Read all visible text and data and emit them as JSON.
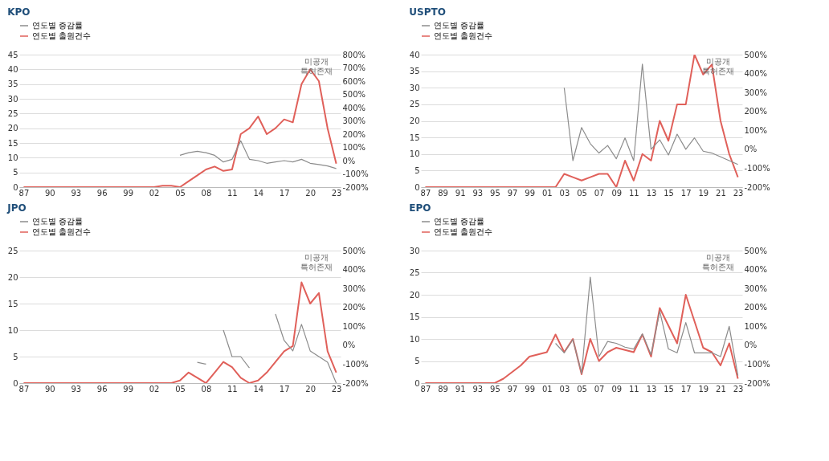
{
  "chart_data": [
    {
      "type": "line",
      "title": "KPO",
      "legend": "top",
      "grid": "y",
      "annotations": [
        "미공개 특허존재"
      ],
      "x": [
        1987,
        1988,
        1989,
        1990,
        1991,
        1992,
        1993,
        1994,
        1995,
        1996,
        1997,
        1998,
        1999,
        2000,
        2001,
        2002,
        2003,
        2004,
        2005,
        2006,
        2007,
        2008,
        2009,
        2010,
        2011,
        2012,
        2013,
        2014,
        2015,
        2016,
        2017,
        2018,
        2019,
        2020,
        2021,
        2022,
        2023
      ],
      "xlim": [
        1986.5,
        2023.5
      ],
      "xticks": [
        {
          "value": 1987,
          "label": "87"
        },
        {
          "value": 1990,
          "label": "90"
        },
        {
          "value": 1993,
          "label": "93"
        },
        {
          "value": 1996,
          "label": "96"
        },
        {
          "value": 1999,
          "label": "99"
        },
        {
          "value": 2002,
          "label": "02"
        },
        {
          "value": 2005,
          "label": "05"
        },
        {
          "value": 2008,
          "label": "08"
        },
        {
          "value": 2011,
          "label": "11"
        },
        {
          "value": 2014,
          "label": "14"
        },
        {
          "value": 2017,
          "label": "17"
        },
        {
          "value": 2020,
          "label": "20"
        },
        {
          "value": 2023,
          "label": "23"
        }
      ],
      "ylim": [
        0,
        45
      ],
      "yticks": [
        0,
        5,
        10,
        15,
        20,
        25,
        30,
        35,
        40,
        45
      ],
      "y2lim": [
        -200,
        800
      ],
      "y2ticks": [
        {
          "value": -200,
          "label": "-200%"
        },
        {
          "value": -100,
          "label": "-100%"
        },
        {
          "value": 0,
          "label": "0%"
        },
        {
          "value": 100,
          "label": "100%"
        },
        {
          "value": 200,
          "label": "200%"
        },
        {
          "value": 300,
          "label": "300%"
        },
        {
          "value": 400,
          "label": "400%"
        },
        {
          "value": 500,
          "label": "500%"
        },
        {
          "value": 600,
          "label": "600%"
        },
        {
          "value": 700,
          "label": "700%"
        },
        {
          "value": 800,
          "label": "800%"
        }
      ],
      "series": [
        {
          "name": "연도별 증감률",
          "color": "#8c8c8c",
          "axis": "y2",
          "values": [
            null,
            null,
            null,
            null,
            null,
            null,
            null,
            null,
            null,
            null,
            null,
            null,
            null,
            null,
            null,
            null,
            null,
            null,
            40,
            60,
            70,
            60,
            40,
            -10,
            10,
            150,
            10,
            0,
            -20,
            -10,
            0,
            -10,
            10,
            -20,
            -30,
            -40,
            -60
          ]
        },
        {
          "name": "연도별 출원건수",
          "color": "#e0605a",
          "values": [
            0,
            0,
            0,
            0,
            0,
            0,
            0,
            0,
            0,
            0,
            0,
            0,
            0,
            0,
            0,
            0,
            0.5,
            0.5,
            0,
            2,
            4,
            6,
            7,
            5.5,
            6,
            18,
            20,
            24,
            18,
            20,
            23,
            22,
            35,
            40,
            36,
            20,
            8
          ]
        }
      ]
    },
    {
      "type": "line",
      "title": "USPTO",
      "legend": "top",
      "grid": "y",
      "annotations": [
        "미공개 특허존재"
      ],
      "x": [
        1987,
        1988,
        1989,
        1990,
        1991,
        1992,
        1993,
        1994,
        1995,
        1996,
        1997,
        1998,
        1999,
        2000,
        2001,
        2002,
        2003,
        2004,
        2005,
        2006,
        2007,
        2008,
        2009,
        2010,
        2011,
        2012,
        2013,
        2014,
        2015,
        2016,
        2017,
        2018,
        2019,
        2020,
        2021,
        2022,
        2023
      ],
      "xlim": [
        1986.5,
        2023.5
      ],
      "xticks": [
        {
          "value": 1987,
          "label": "87"
        },
        {
          "value": 1989,
          "label": "89"
        },
        {
          "value": 1991,
          "label": "91"
        },
        {
          "value": 1993,
          "label": "93"
        },
        {
          "value": 1995,
          "label": "95"
        },
        {
          "value": 1997,
          "label": "97"
        },
        {
          "value": 1999,
          "label": "99"
        },
        {
          "value": 2001,
          "label": "01"
        },
        {
          "value": 2003,
          "label": "03"
        },
        {
          "value": 2005,
          "label": "05"
        },
        {
          "value": 2007,
          "label": "07"
        },
        {
          "value": 2009,
          "label": "09"
        },
        {
          "value": 2011,
          "label": "11"
        },
        {
          "value": 2013,
          "label": "13"
        },
        {
          "value": 2015,
          "label": "15"
        },
        {
          "value": 2017,
          "label": "17"
        },
        {
          "value": 2019,
          "label": "19"
        },
        {
          "value": 2021,
          "label": "21"
        },
        {
          "value": 2023,
          "label": "23"
        }
      ],
      "ylim": [
        0,
        40
      ],
      "yticks": [
        0,
        5,
        10,
        15,
        20,
        25,
        30,
        35,
        40
      ],
      "y2lim": [
        -200,
        500
      ],
      "y2ticks": [
        {
          "value": -200,
          "label": "-200%"
        },
        {
          "value": -100,
          "label": "-100%"
        },
        {
          "value": 0,
          "label": "0%"
        },
        {
          "value": 100,
          "label": "100%"
        },
        {
          "value": 200,
          "label": "200%"
        },
        {
          "value": 300,
          "label": "300%"
        },
        {
          "value": 400,
          "label": "400%"
        },
        {
          "value": 500,
          "label": "500%"
        }
      ],
      "series": [
        {
          "name": "연도별 증감률",
          "color": "#8c8c8c",
          "axis": "y2",
          "values": [
            null,
            null,
            null,
            null,
            null,
            null,
            null,
            null,
            null,
            null,
            null,
            null,
            null,
            null,
            null,
            null,
            325,
            -60,
            115,
            30,
            -20,
            20,
            -50,
            60,
            -60,
            450,
            0,
            50,
            -30,
            80,
            0,
            60,
            -10,
            -20,
            -40,
            -60,
            -80
          ]
        },
        {
          "name": "연도별 출원건수",
          "color": "#e0605a",
          "values": [
            0,
            0,
            0,
            0,
            0,
            0,
            0,
            0,
            0,
            0,
            0,
            0,
            0,
            0,
            0,
            0,
            4,
            3,
            2,
            3,
            4,
            4,
            0,
            8,
            2,
            10,
            8,
            20,
            14,
            25,
            25,
            40,
            34,
            37,
            20,
            10,
            3
          ]
        }
      ]
    },
    {
      "type": "line",
      "title": "JPO",
      "legend": "top",
      "grid": "y",
      "annotations": [
        "미공개 특허존재"
      ],
      "x": [
        1987,
        1988,
        1989,
        1990,
        1991,
        1992,
        1993,
        1994,
        1995,
        1996,
        1997,
        1998,
        1999,
        2000,
        2001,
        2002,
        2003,
        2004,
        2005,
        2006,
        2007,
        2008,
        2009,
        2010,
        2011,
        2012,
        2013,
        2014,
        2015,
        2016,
        2017,
        2018,
        2019,
        2020,
        2021,
        2022,
        2023
      ],
      "xlim": [
        1986.5,
        2023.5
      ],
      "xticks": [
        {
          "value": 1987,
          "label": "87"
        },
        {
          "value": 1990,
          "label": "90"
        },
        {
          "value": 1993,
          "label": "93"
        },
        {
          "value": 1996,
          "label": "96"
        },
        {
          "value": 1999,
          "label": "99"
        },
        {
          "value": 2002,
          "label": "02"
        },
        {
          "value": 2005,
          "label": "05"
        },
        {
          "value": 2008,
          "label": "08"
        },
        {
          "value": 2011,
          "label": "11"
        },
        {
          "value": 2014,
          "label": "14"
        },
        {
          "value": 2017,
          "label": "17"
        },
        {
          "value": 2020,
          "label": "20"
        },
        {
          "value": 2023,
          "label": "23"
        }
      ],
      "ylim": [
        0,
        25
      ],
      "yticks": [
        0,
        5,
        10,
        15,
        20,
        25
      ],
      "y2lim": [
        -200,
        500
      ],
      "y2ticks": [
        {
          "value": -200,
          "label": "-200%"
        },
        {
          "value": -100,
          "label": "-100%"
        },
        {
          "value": 0,
          "label": "0%"
        },
        {
          "value": 100,
          "label": "100%"
        },
        {
          "value": 200,
          "label": "200%"
        },
        {
          "value": 300,
          "label": "300%"
        },
        {
          "value": 400,
          "label": "400%"
        },
        {
          "value": 500,
          "label": "500%"
        }
      ],
      "series": [
        {
          "name": "연도별 증감률",
          "color": "#8c8c8c",
          "axis": "y2",
          "values": [
            null,
            null,
            null,
            null,
            null,
            null,
            null,
            null,
            null,
            null,
            null,
            null,
            null,
            null,
            null,
            null,
            null,
            null,
            null,
            null,
            -90,
            -100,
            null,
            80,
            -60,
            -60,
            -120,
            null,
            null,
            165,
            25,
            -30,
            110,
            -30,
            -60,
            -90,
            -200
          ]
        },
        {
          "name": "연도별 출원건수",
          "color": "#e0605a",
          "values": [
            0,
            0,
            0,
            0,
            0,
            0,
            0,
            0,
            0,
            0,
            0,
            0,
            0,
            0,
            0,
            0,
            0,
            0,
            0.5,
            2,
            1,
            0,
            2,
            4,
            3,
            1,
            0,
            0.5,
            2,
            4,
            6,
            7,
            19,
            15,
            17,
            6,
            2
          ]
        }
      ]
    },
    {
      "type": "line",
      "title": "EPO",
      "legend": "top",
      "grid": "y",
      "annotations": [
        "미공개 특허존재"
      ],
      "x": [
        1987,
        1988,
        1989,
        1990,
        1991,
        1992,
        1993,
        1994,
        1995,
        1996,
        1997,
        1998,
        1999,
        2000,
        2001,
        2002,
        2003,
        2004,
        2005,
        2006,
        2007,
        2008,
        2009,
        2010,
        2011,
        2012,
        2013,
        2014,
        2015,
        2016,
        2017,
        2018,
        2019,
        2020,
        2021,
        2022,
        2023
      ],
      "xlim": [
        1986.5,
        2023.5
      ],
      "xticks": [
        {
          "value": 1987,
          "label": "87"
        },
        {
          "value": 1989,
          "label": "89"
        },
        {
          "value": 1991,
          "label": "91"
        },
        {
          "value": 1993,
          "label": "93"
        },
        {
          "value": 1995,
          "label": "95"
        },
        {
          "value": 1997,
          "label": "97"
        },
        {
          "value": 1999,
          "label": "99"
        },
        {
          "value": 2001,
          "label": "01"
        },
        {
          "value": 2003,
          "label": "03"
        },
        {
          "value": 2005,
          "label": "05"
        },
        {
          "value": 2007,
          "label": "07"
        },
        {
          "value": 2009,
          "label": "09"
        },
        {
          "value": 2011,
          "label": "11"
        },
        {
          "value": 2013,
          "label": "13"
        },
        {
          "value": 2015,
          "label": "15"
        },
        {
          "value": 2017,
          "label": "17"
        },
        {
          "value": 2019,
          "label": "19"
        },
        {
          "value": 2021,
          "label": "21"
        },
        {
          "value": 2023,
          "label": "23"
        }
      ],
      "ylim": [
        0,
        30
      ],
      "yticks": [
        0,
        5,
        10,
        15,
        20,
        25,
        30
      ],
      "y2lim": [
        -200,
        500
      ],
      "y2ticks": [
        {
          "value": -200,
          "label": "-200%"
        },
        {
          "value": -100,
          "label": "-100%"
        },
        {
          "value": 0,
          "label": "0%"
        },
        {
          "value": 100,
          "label": "100%"
        },
        {
          "value": 200,
          "label": "200%"
        },
        {
          "value": 300,
          "label": "300%"
        },
        {
          "value": 400,
          "label": "400%"
        },
        {
          "value": 500,
          "label": "500%"
        }
      ],
      "series": [
        {
          "name": "연도별 증감률",
          "color": "#8c8c8c",
          "axis": "y2",
          "values": [
            null,
            null,
            null,
            null,
            null,
            null,
            null,
            null,
            null,
            null,
            null,
            null,
            null,
            null,
            null,
            10,
            -40,
            30,
            -150,
            360,
            -60,
            20,
            10,
            -10,
            -20,
            60,
            -50,
            180,
            -20,
            -40,
            120,
            -40,
            -40,
            -40,
            -60,
            100,
            -160
          ]
        },
        {
          "name": "연도별 출원건수",
          "color": "#e0605a",
          "values": [
            0,
            0,
            0,
            0,
            0,
            0,
            0,
            0,
            0,
            1,
            2.5,
            4,
            6,
            6.5,
            7,
            11,
            7,
            10,
            2,
            10,
            5,
            7,
            8,
            7.5,
            7,
            11,
            6,
            17,
            13,
            9,
            20,
            14,
            8,
            7,
            4,
            9,
            1
          ]
        }
      ]
    }
  ]
}
